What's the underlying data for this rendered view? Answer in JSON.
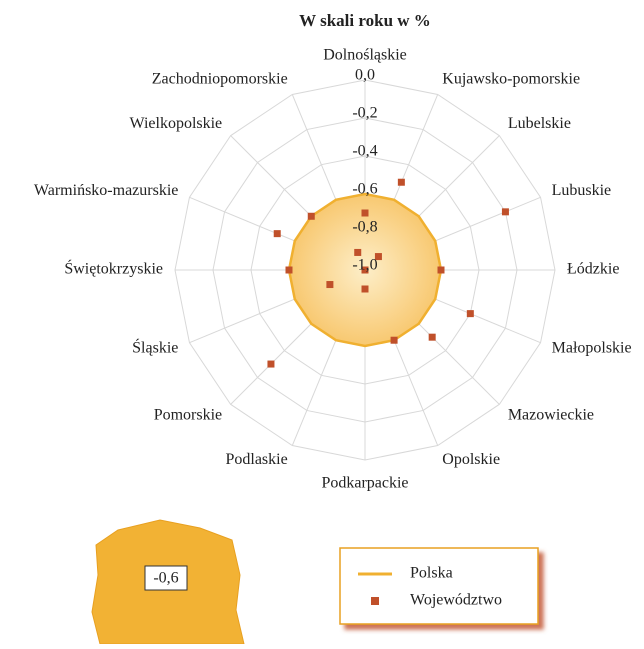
{
  "chart_data": {
    "type": "radar",
    "title": "W skali roku w %",
    "categories": [
      "Dolnośląskie",
      "Kujawsko-pomorskie",
      "Lubelskie",
      "Lubuskie",
      "Łódzkie",
      "Małopolskie",
      "Mazowieckie",
      "Opolskie",
      "Podkarpackie",
      "Podlaskie",
      "Pomorskie",
      "Śląskie",
      "Świętokrzyskie",
      "Warmińsko-mazurskie",
      "Wielkopolskie",
      "Zachodniopomorskie"
    ],
    "series": [
      {
        "name": "Polska",
        "color": "#f0b030",
        "values": [
          -0.6,
          -0.6,
          -0.6,
          -0.6,
          -0.6,
          -0.6,
          -0.6,
          -0.6,
          -0.6,
          -0.6,
          -0.6,
          -0.6,
          -0.6,
          -0.6,
          -0.6,
          -0.6
        ]
      },
      {
        "name": "Województwo",
        "color": "#c0502a",
        "values": [
          -0.7,
          -0.5,
          -0.9,
          -0.2,
          -0.6,
          -0.4,
          -0.5,
          -0.6,
          -0.9,
          -1.0,
          -0.3,
          -0.8,
          -0.6,
          -0.5,
          -0.6,
          -0.9
        ]
      }
    ],
    "rlim": [
      -1.0,
      0.0
    ],
    "rticks": [
      {
        "value": 0.0,
        "label": "0,0"
      },
      {
        "value": -0.2,
        "label": "-0,2"
      },
      {
        "value": -0.4,
        "label": "-0,4"
      },
      {
        "value": -0.6,
        "label": "-0,6"
      },
      {
        "value": -0.8,
        "label": "-0,8"
      },
      {
        "value": -1.0,
        "label": "-1,0"
      }
    ],
    "grid": true,
    "annotation": "-0,6"
  }
}
